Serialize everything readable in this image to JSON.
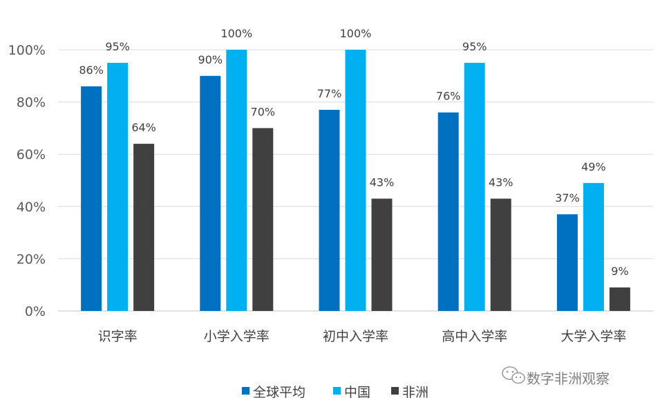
{
  "chart_data": {
    "type": "bar",
    "categories": [
      "识字率",
      "小学入学率",
      "初中入学率",
      "高中入学率",
      "大学入学率"
    ],
    "series": [
      {
        "name": "全球平均",
        "values": [
          86,
          90,
          77,
          76,
          37
        ],
        "labels": [
          "86%",
          "90%",
          "77%",
          "76%",
          "37%"
        ],
        "color": "#0070c0"
      },
      {
        "name": "中国",
        "values": [
          95,
          100,
          100,
          95,
          49
        ],
        "labels": [
          "95%",
          "100%",
          "100%",
          "95%",
          "49%"
        ],
        "color": "#00b0f0"
      },
      {
        "name": "非洲",
        "values": [
          64,
          70,
          43,
          43,
          9
        ],
        "labels": [
          "64%",
          "70%",
          "43%",
          "43%",
          "9%"
        ],
        "color": "#404040"
      }
    ],
    "y_ticks": [
      "0%",
      "20%",
      "40%",
      "60%",
      "80%",
      "100%"
    ],
    "ylim": [
      0,
      100
    ],
    "grid": true,
    "legend_position": "bottom",
    "title": "",
    "xlabel": "",
    "ylabel": ""
  },
  "watermark": {
    "text": "数字非洲观察",
    "icon": "wechat-icon"
  },
  "colors": {
    "gridline": "#d9d9d9",
    "axis_text": "#595959"
  }
}
